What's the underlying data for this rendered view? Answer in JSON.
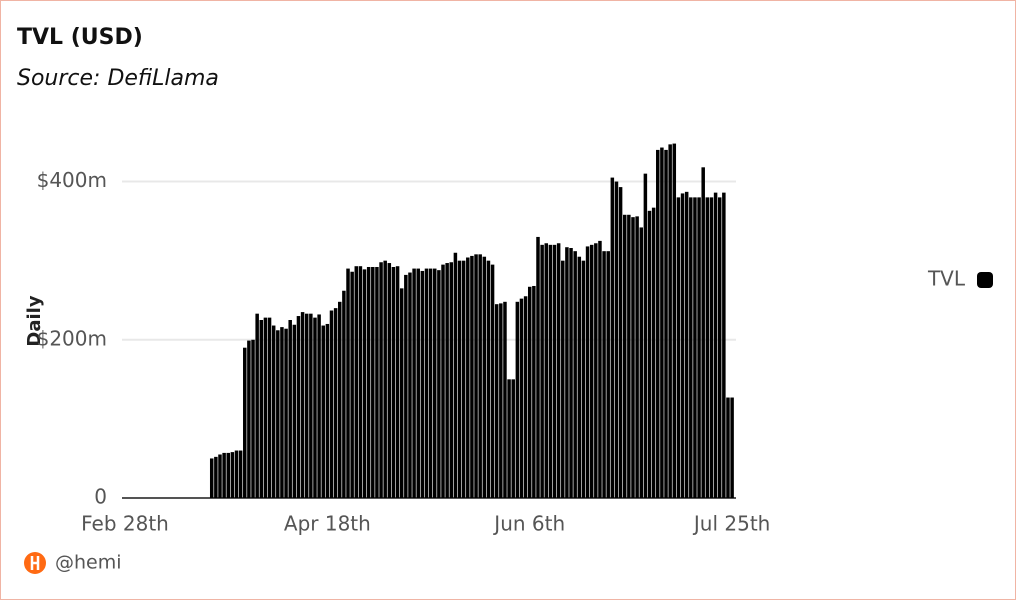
{
  "title": "TVL (USD)",
  "subtitle": "Source: DefiLlama",
  "footer": "@hemi",
  "chart_data": {
    "type": "bar",
    "y_label": "Daily",
    "categories": [
      "Feb 28th",
      null,
      null,
      null,
      null,
      null,
      null,
      null,
      null,
      null,
      null,
      null,
      null,
      null,
      null,
      null,
      null,
      null,
      null,
      null,
      null,
      null,
      null,
      null,
      null,
      null,
      null,
      null,
      null,
      null,
      null,
      null,
      null,
      null,
      null,
      null,
      null,
      null,
      null,
      null,
      null,
      null,
      null,
      null,
      null,
      null,
      null,
      null,
      null,
      "Apr 18th",
      null,
      null,
      null,
      null,
      null,
      null,
      null,
      null,
      null,
      null,
      null,
      null,
      null,
      null,
      null,
      null,
      null,
      null,
      null,
      null,
      null,
      null,
      null,
      null,
      null,
      null,
      null,
      null,
      null,
      null,
      null,
      null,
      null,
      null,
      null,
      null,
      null,
      null,
      null,
      null,
      null,
      null,
      null,
      null,
      null,
      null,
      null,
      null,
      "Jun 6th",
      null,
      null,
      null,
      null,
      null,
      null,
      null,
      null,
      null,
      null,
      null,
      null,
      null,
      null,
      null,
      null,
      null,
      null,
      null,
      null,
      null,
      null,
      null,
      null,
      null,
      null,
      null,
      null,
      null,
      null,
      null,
      null,
      null,
      null,
      null,
      null,
      null,
      null,
      null,
      null,
      null,
      null,
      null,
      null,
      null,
      null,
      null,
      null,
      "Jul 25th"
    ],
    "series": [
      {
        "name": "TVL",
        "color": "#000000",
        "values": [
          0,
          0,
          0,
          0,
          0,
          0,
          0,
          0,
          0,
          0,
          0,
          0,
          0,
          0,
          0,
          0,
          0,
          0,
          0,
          0,
          0,
          50,
          52,
          55,
          57,
          57,
          58,
          60,
          60,
          190,
          199,
          200,
          233,
          225,
          228,
          228,
          218,
          212,
          216,
          214,
          225,
          219,
          230,
          235,
          233,
          233,
          228,
          232,
          218,
          220,
          237,
          240,
          248,
          262,
          290,
          286,
          293,
          293,
          289,
          292,
          292,
          292,
          298,
          300,
          297,
          292,
          293,
          265,
          282,
          285,
          290,
          290,
          287,
          290,
          290,
          290,
          288,
          295,
          297,
          298,
          310,
          300,
          300,
          304,
          306,
          308,
          308,
          305,
          300,
          295,
          245,
          246,
          248,
          150,
          150,
          248,
          252,
          255,
          267,
          268,
          330,
          320,
          322,
          320,
          320,
          322,
          300,
          317,
          316,
          312,
          305,
          300,
          318,
          320,
          322,
          325,
          312,
          312,
          405,
          400,
          393,
          358,
          358,
          355,
          356,
          342,
          410,
          363,
          367,
          440,
          443,
          440,
          447,
          448,
          380,
          385,
          387,
          380,
          380,
          380,
          418,
          380,
          380,
          386,
          380,
          386,
          127,
          127
        ]
      }
    ],
    "ylim": [
      0,
      450
    ],
    "yticks": [
      0,
      {
        "value": 200,
        "label": "$200m"
      },
      {
        "value": 400,
        "label": "$400m"
      }
    ],
    "grid": true,
    "legend": "right"
  }
}
